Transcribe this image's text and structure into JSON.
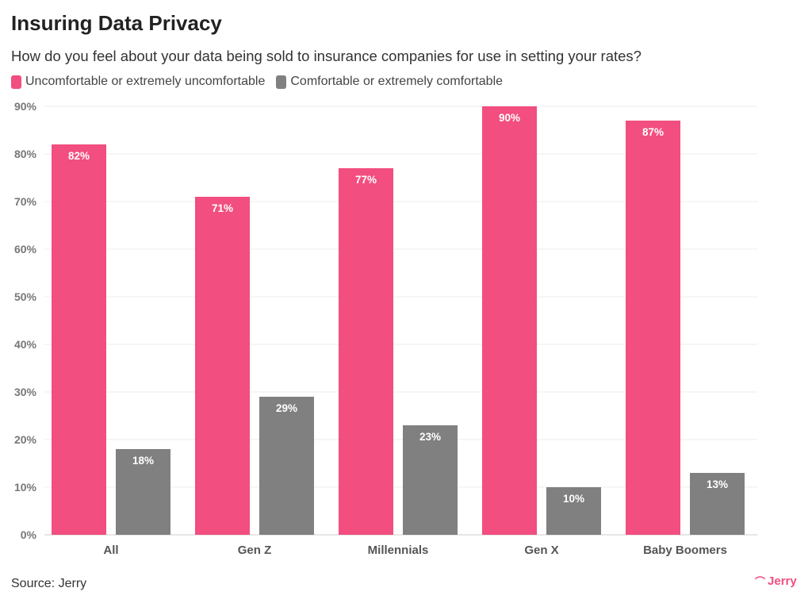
{
  "title": "Insuring Data Privacy",
  "subtitle": "How do you feel about your data being sold to insurance companies for use in setting your rates?",
  "source": "Source: Jerry",
  "logo": "Jerry",
  "chart_data": {
    "type": "bar",
    "categories": [
      "All",
      "Gen Z",
      "Millennials",
      "Gen X",
      "Baby Boomers"
    ],
    "series": [
      {
        "name": "Uncomfortable or extremely uncomfortable",
        "color": "#f24e7f",
        "values": [
          82,
          71,
          77,
          90,
          87
        ]
      },
      {
        "name": "Comfortable or extremely comfortable",
        "color": "#808080",
        "values": [
          18,
          29,
          23,
          10,
          13
        ]
      }
    ],
    "ylim": [
      0,
      90
    ],
    "yticks": [
      "0%",
      "10%",
      "20%",
      "30%",
      "40%",
      "50%",
      "60%",
      "70%",
      "80%",
      "90%"
    ],
    "grid": true,
    "legend": "top-left"
  }
}
